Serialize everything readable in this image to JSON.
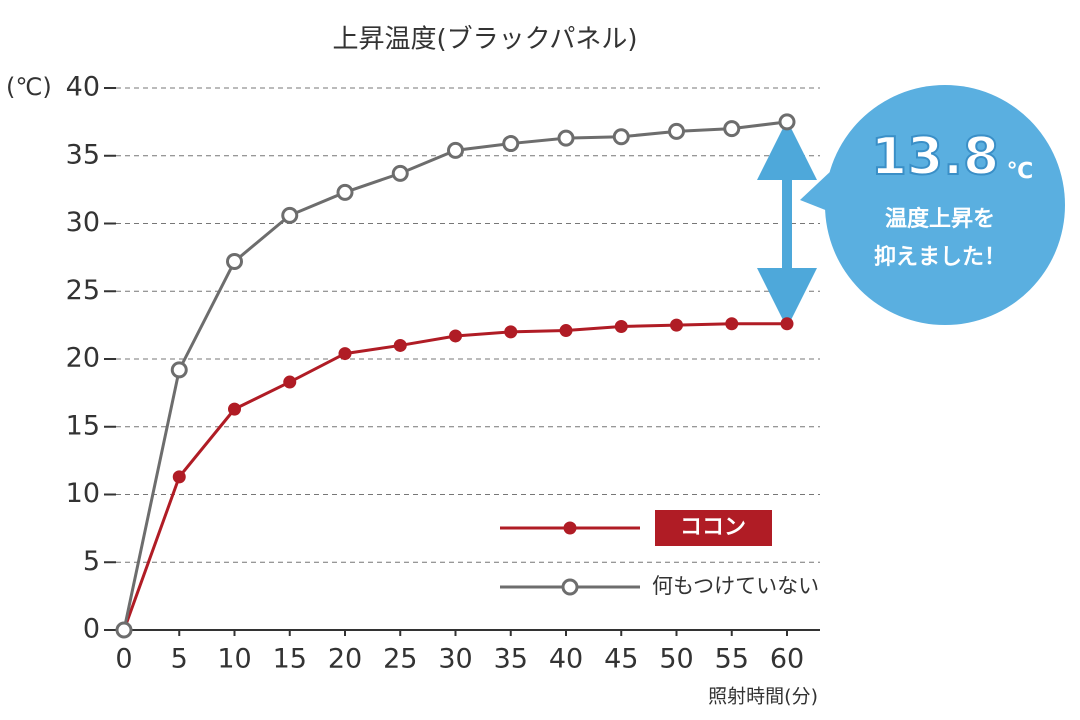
{
  "chart_data": {
    "type": "line",
    "title": "上昇温度(ブラックパネル)",
    "y_unit": "(℃)",
    "x_label": "照射時間(分)",
    "x": [
      0,
      5,
      10,
      15,
      20,
      25,
      30,
      35,
      40,
      45,
      50,
      55,
      60
    ],
    "xlim": [
      0,
      60
    ],
    "xticks": [
      0,
      5,
      10,
      15,
      20,
      25,
      30,
      35,
      40,
      45,
      50,
      55,
      60
    ],
    "ylim": [
      0,
      40
    ],
    "yticks": [
      0,
      5,
      10,
      15,
      20,
      25,
      30,
      35,
      40
    ],
    "grid": true,
    "series": [
      {
        "name": "ココン",
        "color": "#b01c25",
        "marker": "filled",
        "values": [
          0,
          11.3,
          16.3,
          18.3,
          20.4,
          21.0,
          21.7,
          22.0,
          22.1,
          22.4,
          22.5,
          22.6,
          22.6
        ]
      },
      {
        "name": "何もつけていない",
        "color": "#6d6d6d",
        "marker": "open",
        "values": [
          0,
          19.2,
          27.2,
          30.6,
          32.3,
          33.7,
          35.4,
          35.9,
          36.3,
          36.4,
          36.8,
          37.0,
          37.5
        ]
      }
    ],
    "annotation": {
      "value": "13.8",
      "unit": "℃",
      "lines": [
        "温度上昇を",
        "抑えました！"
      ],
      "color": "#5aafe0"
    }
  }
}
